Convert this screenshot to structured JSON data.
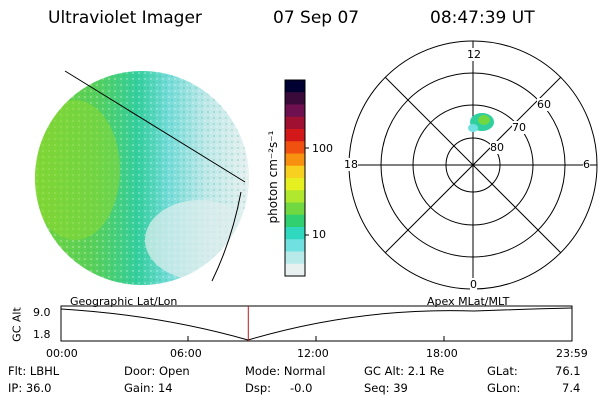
{
  "header": {
    "instrument": "Ultraviolet Imager",
    "date": "07 Sep 07",
    "time": "08:47:39 UT"
  },
  "colorbar": {
    "label": "photon cm⁻²s⁻¹",
    "ticks": [
      "100",
      "10"
    ],
    "colors": [
      "#000033",
      "#3a0a3a",
      "#6e1050",
      "#a01030",
      "#d21818",
      "#f05010",
      "#f89010",
      "#f8d020",
      "#e6f020",
      "#b0e830",
      "#70d840",
      "#30d070",
      "#30d8c0",
      "#70e0e0",
      "#b8eaea",
      "#e8f0f0"
    ]
  },
  "polar": {
    "mlt_labels": {
      "top": "12",
      "bottom": "0",
      "left": "18",
      "right": "6"
    },
    "lat_labels": [
      "60",
      "70",
      "80"
    ]
  },
  "timeline": {
    "left_title": "Geographic Lat/Lon",
    "right_title": "Apex MLat/MLT",
    "ylabel": "GC Alt",
    "yticks": [
      "9.0",
      "1.8"
    ],
    "xticks": [
      "00:00",
      "06:00",
      "12:00",
      "18:00",
      "23:59"
    ],
    "current_hour": 8.79
  },
  "status": {
    "flt": "Flt: LBHL",
    "door": "Door: Open",
    "mode": "Mode: Normal",
    "gcalt": "GC Alt: 2.1 Re",
    "glat_label": "GLat:",
    "glat_value": "76.1",
    "ip": "IP: 36.0",
    "gain": "Gain: 14",
    "dsp_label": "Dsp:",
    "dsp_value": "-0.0",
    "seq": "Seq: 39",
    "glon_label": "GLon:",
    "glon_value": "7.4"
  }
}
